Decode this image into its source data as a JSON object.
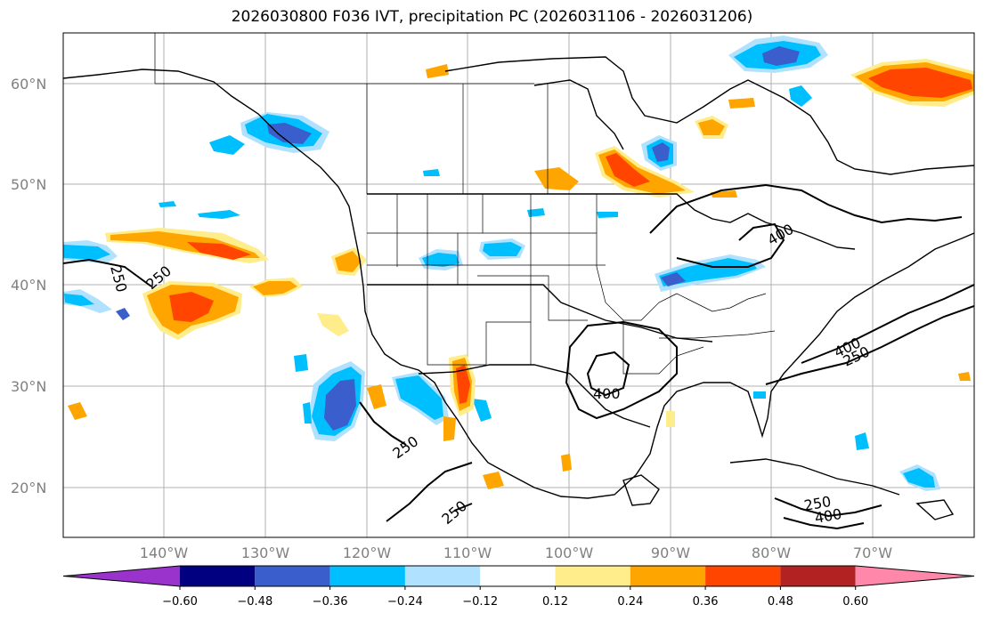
{
  "title": "2026030800 F036 IVT, precipitation PC (2026031106 - 2026031206)",
  "lat_labels": [
    "60°N",
    "50°N",
    "40°N",
    "30°N",
    "20°N"
  ],
  "lon_labels": [
    "140°W",
    "130°W",
    "120°W",
    "110°W",
    "100°W",
    "90°W",
    "80°W",
    "70°W"
  ],
  "colorbar": {
    "ticks": [
      "−0.60",
      "−0.48",
      "−0.36",
      "−0.24",
      "−0.12",
      "0.12",
      "0.24",
      "0.36",
      "0.48",
      "0.60"
    ],
    "colors": [
      "#9933cc",
      "#000080",
      "#3a5fcd",
      "#00bfff",
      "#b0e2ff",
      "#ffffff",
      "#ffec8b",
      "#ffa500",
      "#ff4500",
      "#b22222",
      "#ff88aa"
    ]
  },
  "contour_labels": [
    "250",
    "250",
    "250",
    "250",
    "400",
    "400",
    "250",
    "400",
    "250",
    "400"
  ],
  "colors": {
    "neg_light": "#b0e2ff",
    "neg_mid": "#00bfff",
    "neg_dark": "#3a5fcd",
    "neg_darkest": "#000080",
    "pos_light": "#ffec8b",
    "pos_mid": "#ffa500",
    "pos_dark": "#ff4500",
    "grid": "#b0b0b0"
  }
}
